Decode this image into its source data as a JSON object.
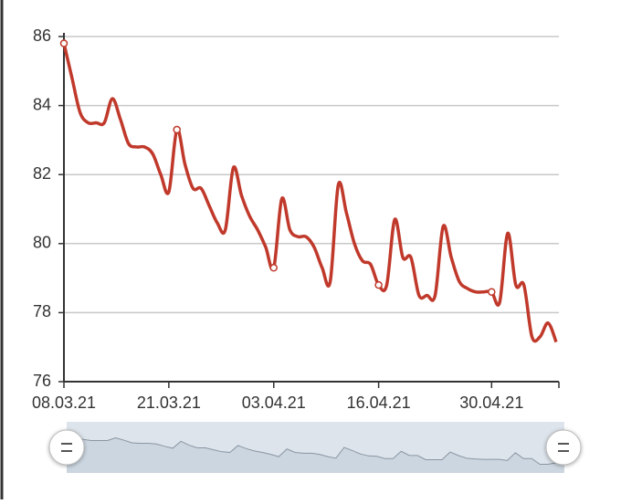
{
  "chart_data": {
    "type": "line",
    "x": [
      "08.03.21",
      "09.03.21",
      "10.03.21",
      "11.03.21",
      "12.03.21",
      "13.03.21",
      "14.03.21",
      "15.03.21",
      "16.03.21",
      "17.03.21",
      "18.03.21",
      "19.03.21",
      "20.03.21",
      "21.03.21",
      "22.03.21",
      "23.03.21",
      "24.03.21",
      "25.03.21",
      "26.03.21",
      "27.03.21",
      "28.03.21",
      "29.03.21",
      "30.03.21",
      "31.03.21",
      "01.04.21",
      "02.04.21",
      "03.04.21",
      "04.04.21",
      "05.04.21",
      "06.04.21",
      "07.04.21",
      "08.04.21",
      "09.04.21",
      "10.04.21",
      "11.04.21",
      "12.04.21",
      "13.04.21",
      "14.04.21",
      "15.04.21",
      "16.04.21",
      "17.04.21",
      "18.04.21",
      "19.04.21",
      "20.04.21",
      "21.04.21",
      "22.04.21",
      "23.04.21",
      "24.04.21",
      "25.04.21",
      "26.04.21",
      "27.04.21",
      "28.04.21",
      "29.04.21",
      "30.04.21",
      "01.05.21",
      "02.05.21",
      "03.05.21",
      "04.05.21",
      "05.05.21",
      "06.05.21",
      "07.05.21",
      "08.05.21"
    ],
    "series": [
      {
        "color": "#c0392b",
        "values": [
          85.8,
          84.8,
          83.8,
          83.5,
          83.5,
          83.5,
          84.2,
          83.6,
          82.9,
          82.8,
          82.8,
          82.6,
          82.0,
          81.5,
          83.3,
          82.3,
          81.6,
          81.6,
          81.1,
          80.6,
          80.4,
          82.2,
          81.4,
          80.8,
          80.4,
          79.9,
          79.3,
          81.3,
          80.4,
          80.2,
          80.2,
          79.9,
          79.3,
          78.9,
          81.7,
          80.9,
          80.0,
          79.5,
          79.4,
          78.8,
          78.8,
          80.7,
          79.6,
          79.6,
          78.5,
          78.5,
          78.5,
          80.5,
          79.6,
          78.9,
          78.7,
          78.6,
          78.6,
          78.6,
          78.3,
          80.3,
          78.8,
          78.8,
          77.3,
          77.3,
          77.7,
          77.15
        ]
      }
    ],
    "marker_indices": [
      0,
      14,
      26,
      39,
      53
    ],
    "ylim": [
      76,
      86
    ],
    "yticks": [
      76,
      78,
      80,
      82,
      84,
      86
    ],
    "xticks": [
      "08.03.21",
      "21.03.21",
      "03.04.21",
      "16.04.21",
      "30.04.21"
    ],
    "grid": true
  }
}
